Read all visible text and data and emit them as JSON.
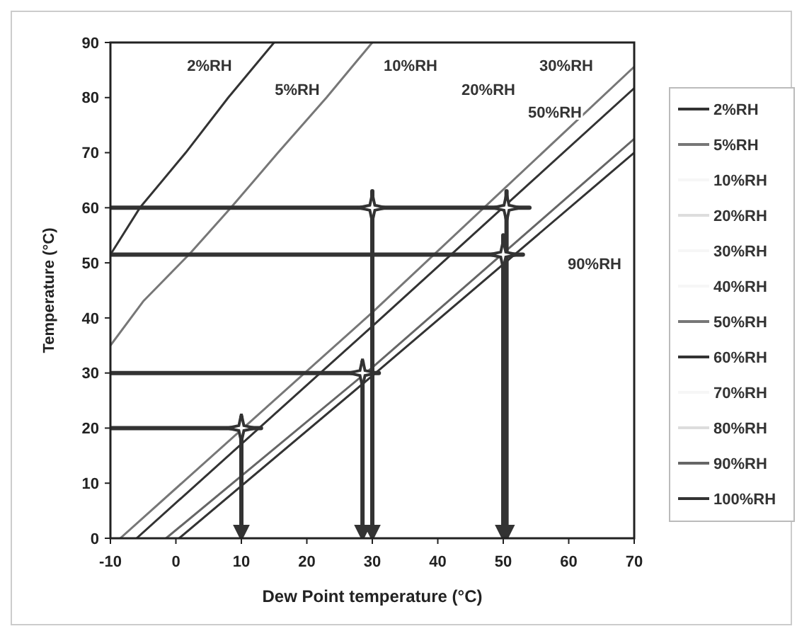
{
  "chart_data": {
    "type": "line",
    "xlabel": "Dew Point temperature (°C)",
    "ylabel": "Temperature (°C)",
    "xlim": [
      -10,
      70
    ],
    "xticks": [
      -10,
      0,
      10,
      20,
      30,
      40,
      50,
      60,
      70
    ],
    "ylim": [
      0,
      90
    ],
    "yticks": [
      0,
      10,
      20,
      30,
      40,
      50,
      60,
      70,
      80,
      90
    ],
    "grid": false,
    "legend": "right",
    "marker": "none",
    "line_style": "solid",
    "series": [
      {
        "name": "2%RH",
        "color": "#333333",
        "x": [
          -10,
          -5.5,
          1.5,
          8,
          15
        ],
        "values": [
          51.5,
          60,
          70,
          80,
          90
        ]
      },
      {
        "name": "5%RH",
        "color": "#777777",
        "x": [
          -10,
          -5,
          2,
          8.4,
          15.6,
          23,
          30
        ],
        "values": [
          35,
          43,
          51.5,
          60,
          70,
          80,
          90
        ]
      },
      {
        "name": "10%RH",
        "color": "#f6f6f6"
      },
      {
        "name": "20%RH",
        "color": "#dddddd"
      },
      {
        "name": "30%RH",
        "color": "#f6f6f6"
      },
      {
        "name": "40%RH",
        "color": "#f6f6f6"
      },
      {
        "name": "50%RH",
        "color": "#777777",
        "x": [
          -8.5,
          30,
          70
        ],
        "values": [
          0,
          41,
          85.6
        ]
      },
      {
        "name": "60%RH",
        "color": "#333333",
        "x": [
          -6,
          30,
          70
        ],
        "values": [
          0,
          38.5,
          81.7
        ]
      },
      {
        "name": "70%RH",
        "color": "#f6f6f6"
      },
      {
        "name": "80%RH",
        "color": "#dddddd"
      },
      {
        "name": "90%RH",
        "color": "#666666",
        "x": [
          -1.5,
          30,
          70
        ],
        "values": [
          0,
          31,
          72.5
        ]
      },
      {
        "name": "100%RH",
        "color": "#333333",
        "x": [
          0.5,
          30,
          70
        ],
        "values": [
          0,
          29.5,
          70
        ]
      },
      {
        "color": "#333333",
        "x": [
          -10,
          54
        ],
        "values": [
          60,
          60
        ]
      },
      {
        "color": "#333333",
        "x": [
          -10,
          53
        ],
        "values": [
          51.5,
          51.5
        ]
      },
      {
        "color": "#333333",
        "x": [
          -10,
          31
        ],
        "values": [
          30,
          30
        ]
      },
      {
        "color": "#333333",
        "x": [
          -10,
          13
        ],
        "values": [
          20,
          20
        ]
      },
      {
        "color": "#333333",
        "x": [
          10,
          10
        ],
        "values": [
          22,
          0
        ]
      },
      {
        "color": "#333333",
        "x": [
          28.5,
          28.5
        ],
        "values": [
          32,
          0
        ]
      },
      {
        "color": "#333333",
        "x": [
          30,
          30
        ],
        "values": [
          63,
          0
        ]
      },
      {
        "color": "#333333",
        "x": [
          50.5,
          50.5
        ],
        "values": [
          63,
          0
        ]
      },
      {
        "color": "#333333",
        "x": [
          50,
          50
        ],
        "values": [
          55,
          0
        ]
      },
      {
        "type": "scatter",
        "marker": "star",
        "color": "#333333",
        "x": [
          10,
          28.5,
          30,
          50.5,
          50
        ],
        "values": [
          20,
          30,
          60,
          60,
          51.5
        ]
      }
    ],
    "annotations": [
      "2%RH",
      "5%RH",
      "10%RH",
      "20%RH",
      "30%RH",
      "50%RH",
      "90%RH"
    ]
  }
}
